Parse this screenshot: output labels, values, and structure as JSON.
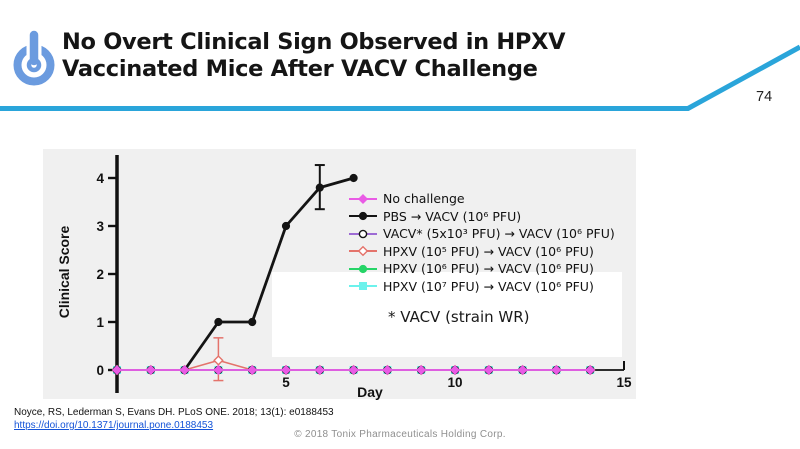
{
  "header": {
    "title_line1": "No Overt Clinical Sign Observed in HPXV",
    "title_line2": "Vaccinated Mice After VACV Challenge",
    "page_number": "74",
    "accent_color": "#2aa5da",
    "logo_color": "#6b9bdf",
    "logo_icon": "power-button"
  },
  "chart_data": {
    "type": "line",
    "title": "",
    "xlabel": "Day",
    "ylabel": "Clinical Score",
    "xticks": [
      5,
      10,
      15
    ],
    "yticks": [
      0,
      1,
      2,
      3,
      4
    ],
    "xlim": [
      0,
      15
    ],
    "ylim": [
      -0.5,
      4.6
    ],
    "grid": false,
    "panel_bg": "#f0f0f0",
    "legend_position": "upper right",
    "annotation": "* VACV (strain WR)",
    "draw_order": [
      5,
      4,
      3,
      2,
      1,
      0
    ],
    "series": [
      {
        "name": "No challenge",
        "color": "#e95be5",
        "marker": "diamond",
        "fill": "solid",
        "line_width": 1.8,
        "x": [
          0,
          1,
          2,
          3,
          4,
          5,
          6,
          7,
          8,
          9,
          10,
          11,
          12,
          13,
          14
        ],
        "y": [
          0,
          0,
          0,
          0,
          0,
          0,
          0,
          0,
          0,
          0,
          0,
          0,
          0,
          0,
          0
        ]
      },
      {
        "name": "PBS →  VACV (10⁶ PFU)",
        "color": "#141414",
        "marker": "circle",
        "fill": "solid",
        "line_width": 2.8,
        "x": [
          2,
          3,
          4,
          5,
          6,
          7
        ],
        "y": [
          0,
          1,
          1,
          3,
          3.8,
          4
        ],
        "errors": [
          {
            "x": 6,
            "plus": 0.47,
            "minus": 0.45
          }
        ]
      },
      {
        "name": "VACV*  (5x10³ PFU) → VACV (10⁶ PFU)",
        "color": "#9d6bd4",
        "marker": "circle",
        "fill": "open",
        "marker_stroke": "#141414",
        "line_width": 1.8,
        "x": [
          0,
          1,
          2,
          3,
          4,
          5,
          6,
          7,
          8,
          9,
          10,
          11,
          12,
          13,
          14
        ],
        "y": [
          0,
          0,
          0,
          0,
          0,
          0,
          0,
          0,
          0,
          0,
          0,
          0,
          0,
          0,
          0
        ]
      },
      {
        "name": "HPXV (10⁵ PFU) → VACV (10⁶ PFU)",
        "color": "#e4736b",
        "marker": "diamond",
        "fill": "open",
        "line_width": 1.6,
        "x": [
          0,
          1,
          2,
          3,
          4,
          5,
          6,
          7,
          8,
          9,
          10,
          11,
          12,
          13,
          14
        ],
        "y": [
          0,
          0,
          0,
          0.2,
          0,
          0,
          0,
          0,
          0,
          0,
          0,
          0,
          0,
          0,
          0
        ],
        "errors": [
          {
            "x": 3,
            "plus": 0.47,
            "minus": 0.42
          }
        ]
      },
      {
        "name": "HPXV (10⁶ PFU) → VACV (10⁶ PFU)",
        "color": "#26d467",
        "marker": "circle",
        "fill": "solid",
        "line_width": 1.8,
        "x": [
          0,
          1,
          2,
          3,
          4,
          5,
          6,
          7,
          8,
          9,
          10,
          11,
          12,
          13,
          14
        ],
        "y": [
          0,
          0,
          0,
          0,
          0,
          0,
          0,
          0,
          0,
          0,
          0,
          0,
          0,
          0,
          0
        ]
      },
      {
        "name": "HPXV (10⁷ PFU) → VACV (10⁶ PFU)",
        "color": "#6cf2ec",
        "marker": "square",
        "fill": "solid",
        "line_width": 1.8,
        "x": [
          0,
          1,
          2,
          3,
          4,
          5,
          6,
          7,
          8,
          9,
          10,
          11,
          12,
          13,
          14
        ],
        "y": [
          0,
          0,
          0,
          0,
          0,
          0,
          0,
          0,
          0,
          0,
          0,
          0,
          0,
          0,
          0
        ]
      }
    ]
  },
  "citation": {
    "text": "Noyce, RS, Lederman S, Evans DH. PLoS ONE. 2018; 13(1): e0188453",
    "link": "https://doi.org/10.1371/journal.pone.0188453"
  },
  "footer": {
    "copyright": "© 2018 Tonix Pharmaceuticals Holding Corp."
  }
}
